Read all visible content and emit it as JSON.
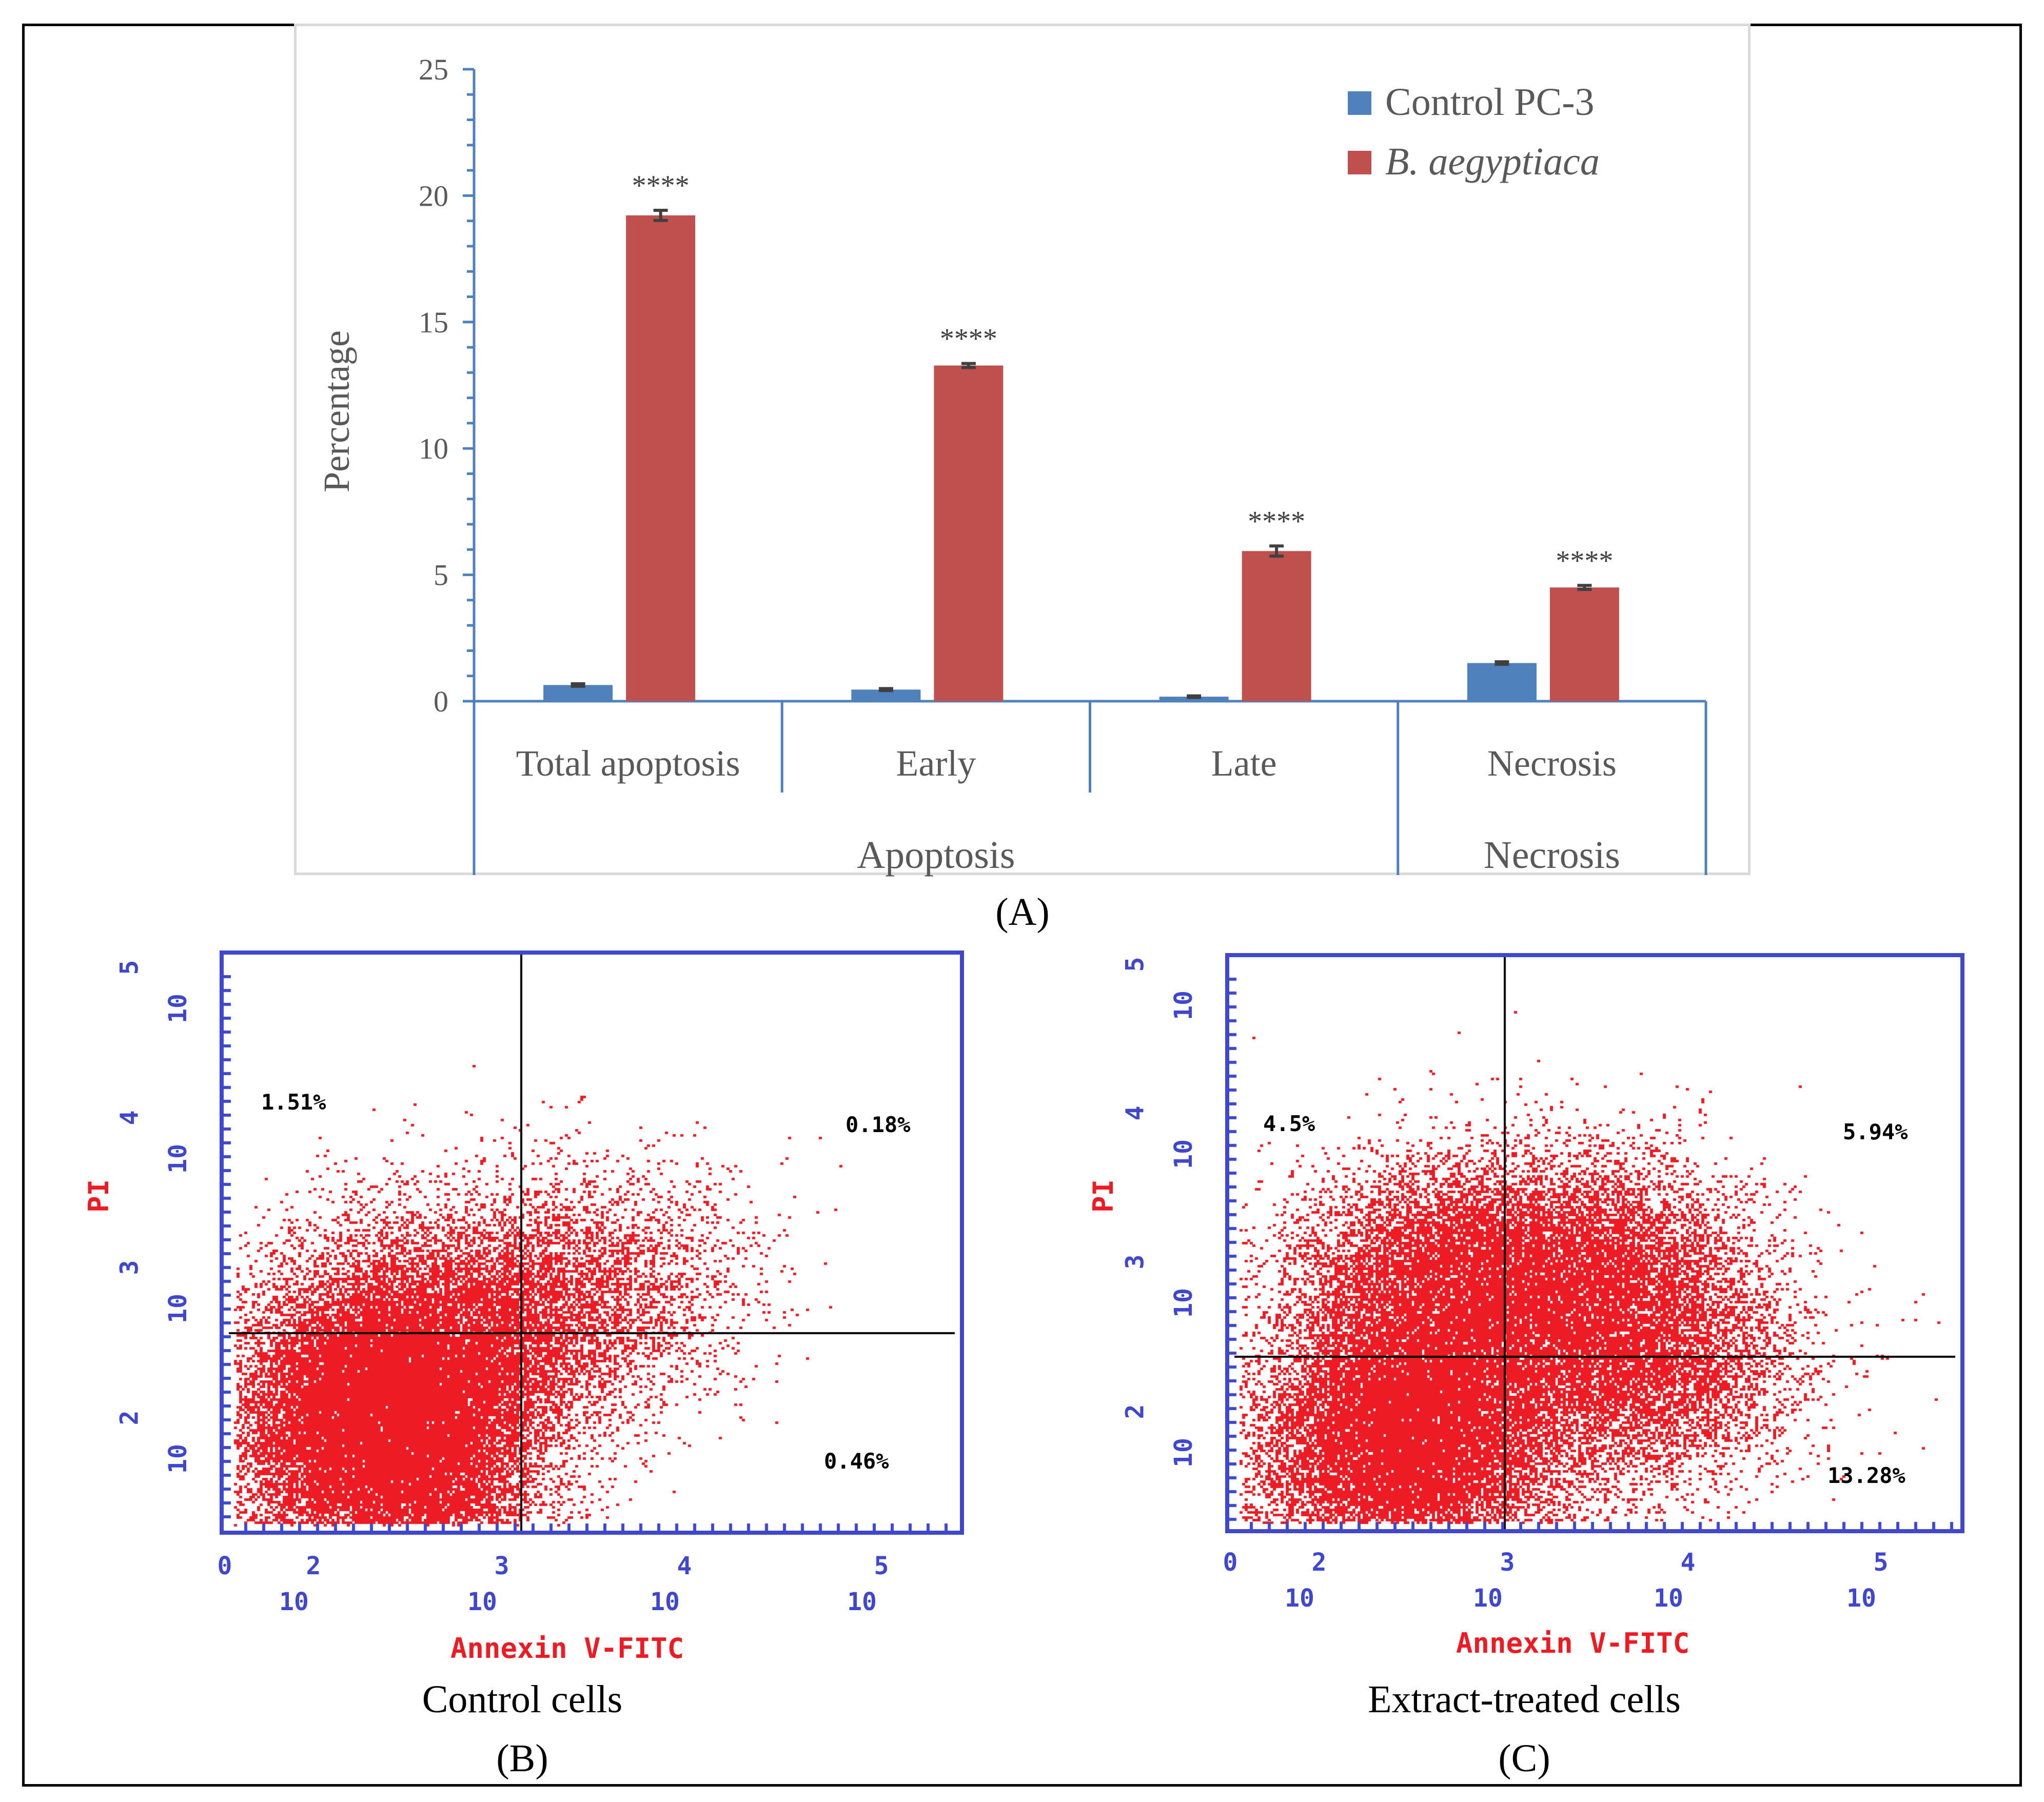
{
  "chart_data": [
    {
      "type": "bar",
      "panel_label": "(A)",
      "title": "",
      "ylabel": "Percentage",
      "xlabel": "",
      "ylim": [
        0,
        25
      ],
      "yticks": [
        "0",
        "5",
        "10",
        "15",
        "20",
        "25"
      ],
      "categories": [
        "Total apoptosis",
        "Early",
        "Late",
        "Necrosis"
      ],
      "category_groups": [
        {
          "label": "Apoptosis",
          "members": [
            "Total apoptosis",
            "Early",
            "Late"
          ]
        },
        {
          "label": "Necrosis",
          "members": [
            "Necrosis"
          ]
        }
      ],
      "legend_position": "top-right",
      "series": [
        {
          "name": "Control PC-3",
          "color": "#4f81bd",
          "values": [
            0.64,
            0.46,
            0.18,
            1.51
          ],
          "errors": [
            0.05,
            0.04,
            0.03,
            0.05
          ]
        },
        {
          "name": "B. aegyptiaca",
          "color": "#c0504d",
          "values": [
            19.22,
            13.28,
            5.94,
            4.5
          ],
          "errors": [
            0.2,
            0.08,
            0.2,
            0.08
          ]
        }
      ],
      "annotations": [
        "****",
        "****",
        "****",
        "****"
      ],
      "grid": false
    },
    {
      "type": "scatter",
      "panel_label": "(B)",
      "caption": "Control cells",
      "xlabel": "Annexin V-FITC",
      "ylabel": "PI",
      "xticks": [
        {
          "exp": "0",
          "base": ""
        },
        {
          "exp": "2",
          "base": "10"
        },
        {
          "exp": "3",
          "base": "10"
        },
        {
          "exp": "4",
          "base": "10"
        },
        {
          "exp": "5",
          "base": "10"
        }
      ],
      "yticks": [
        {
          "exp": "2",
          "base": "10"
        },
        {
          "exp": "3",
          "base": "10"
        },
        {
          "exp": "4",
          "base": "10"
        },
        {
          "exp": "5",
          "base": "10"
        }
      ],
      "quadrants": {
        "upper_left": "1.51%",
        "upper_right": "0.18%",
        "lower_right": "0.46%"
      },
      "color": "#ed1c24"
    },
    {
      "type": "scatter",
      "panel_label": "(C)",
      "caption": "Extract-treated cells",
      "xlabel": "Annexin V-FITC",
      "ylabel": "PI",
      "xticks": [
        {
          "exp": "0",
          "base": ""
        },
        {
          "exp": "2",
          "base": "10"
        },
        {
          "exp": "3",
          "base": "10"
        },
        {
          "exp": "4",
          "base": "10"
        },
        {
          "exp": "5",
          "base": "10"
        }
      ],
      "yticks": [
        {
          "exp": "2",
          "base": "10"
        },
        {
          "exp": "3",
          "base": "10"
        },
        {
          "exp": "4",
          "base": "10"
        },
        {
          "exp": "5",
          "base": "10"
        }
      ],
      "quadrants": {
        "upper_left": "4.5%",
        "upper_right": "5.94%",
        "lower_right": "13.28%"
      },
      "color": "#ed1c24"
    }
  ]
}
